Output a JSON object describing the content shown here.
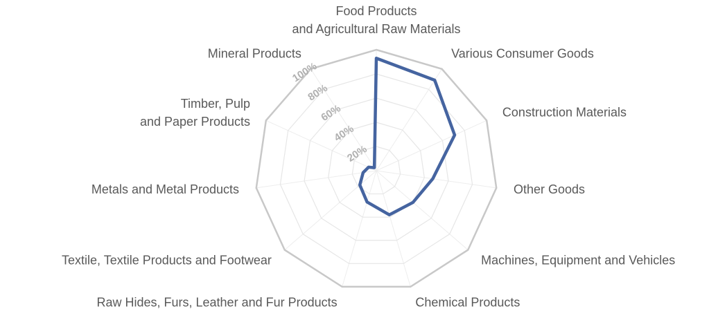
{
  "chart_data": {
    "type": "radar",
    "categories": [
      "Food Products\nand Agricultural Raw Materials",
      "Various Consumer Goods",
      "Construction Materials",
      "Other Goods",
      "Machines, Equipment and Vehicles",
      "Chemical Products",
      "Raw Hides, Furs, Leather and Fur Products",
      "Textile, Textile Products and Footwear",
      "Metals and Metal Products",
      "Timber, Pulp\nand Paper Products",
      "Mineral Products"
    ],
    "values": [
      93,
      89,
      71,
      47,
      40,
      38,
      27,
      18,
      11,
      7,
      3
    ],
    "color": "#4564a0",
    "rlim": [
      0,
      100
    ],
    "rticks": [
      {
        "value": 20,
        "label": "20%"
      },
      {
        "value": 40,
        "label": "40%"
      },
      {
        "value": 60,
        "label": "60%"
      },
      {
        "value": 80,
        "label": "80%"
      },
      {
        "value": 100,
        "label": "100%"
      }
    ],
    "grid": true
  }
}
